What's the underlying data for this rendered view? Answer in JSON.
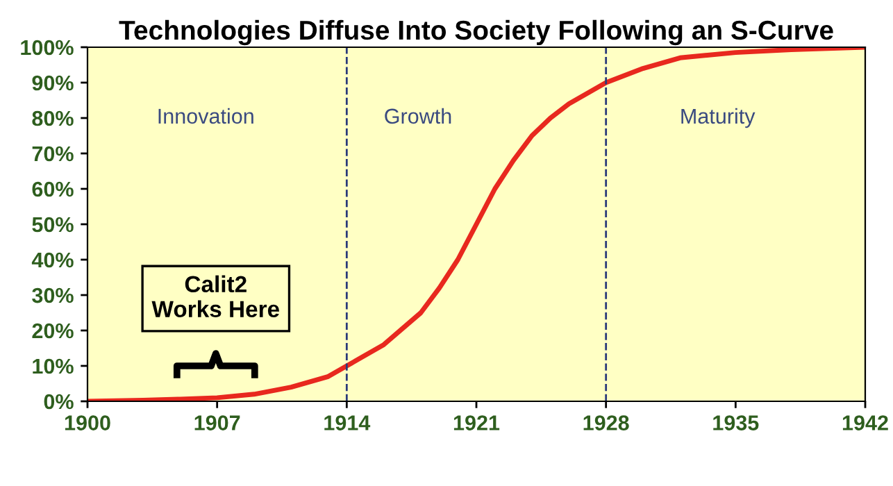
{
  "chart_data": {
    "type": "line",
    "title": "Technologies Diffuse Into Society Following an S-Curve",
    "x": [
      1900,
      1903,
      1905,
      1907,
      1909,
      1911,
      1913,
      1914,
      1916,
      1918,
      1919,
      1920,
      1921,
      1922,
      1923,
      1924,
      1925,
      1926,
      1928,
      1930,
      1932,
      1935,
      1938,
      1942
    ],
    "series": [
      {
        "color": "#e8281e",
        "values": [
          0,
          0.3,
          0.6,
          1,
          2,
          4,
          7,
          10,
          16,
          25,
          32,
          40,
          50,
          60,
          68,
          75,
          80,
          84,
          90,
          94,
          97,
          98.5,
          99.3,
          100
        ]
      }
    ],
    "xlim": [
      1900,
      1942
    ],
    "xticks": [
      1900,
      1907,
      1914,
      1921,
      1928,
      1935,
      1942
    ],
    "ylim": [
      0,
      100
    ],
    "yticks": [
      {
        "value": 0,
        "label": "0%"
      },
      {
        "value": 10,
        "label": "10%"
      },
      {
        "value": 20,
        "label": "20%"
      },
      {
        "value": 30,
        "label": "30%"
      },
      {
        "value": 40,
        "label": "40%"
      },
      {
        "value": 50,
        "label": "50%"
      },
      {
        "value": 60,
        "label": "60%"
      },
      {
        "value": 70,
        "label": "70%"
      },
      {
        "value": 80,
        "label": "80%"
      },
      {
        "value": 90,
        "label": "90%"
      },
      {
        "value": 100,
        "label": "100%"
      }
    ],
    "ref_lines": [
      {
        "axis": "x",
        "value": 1914,
        "color": "#2a3a7a",
        "line_style": "dashed"
      },
      {
        "axis": "x",
        "value": 1928,
        "color": "#2a3a7a",
        "line_style": "dashed"
      }
    ],
    "annotations": [
      "Innovation",
      "Growth",
      "Maturity",
      "Calit2\nWorks Here"
    ],
    "grid": false,
    "legend": false,
    "marker": "none",
    "line_style": "solid"
  }
}
